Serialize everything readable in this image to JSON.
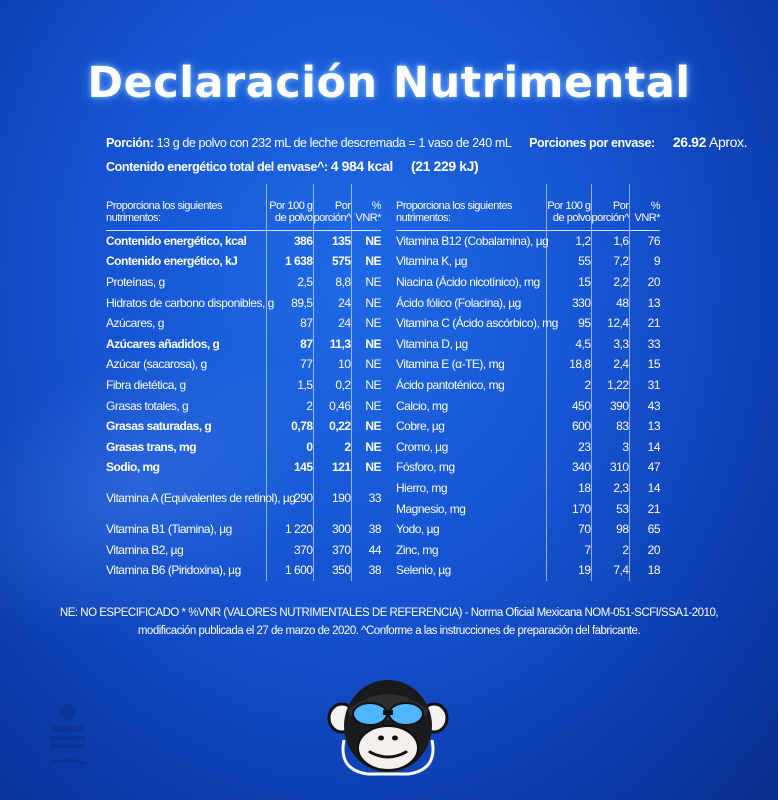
{
  "title": "Declaración Nutrimental",
  "serving": {
    "portion_label": "Porción:",
    "portion_text": "13 g de polvo con 232 mL de leche descremada = 1 vaso de 240 mL",
    "servings_label": "Porciones por envase:",
    "servings_value": "26.92",
    "servings_unit": "Aprox.",
    "energy_label": "Contenido energético total del envase^:",
    "energy_kcal": "4 984 kcal",
    "energy_kj": "(21 229 kJ)"
  },
  "left_table": {
    "headers": [
      "Proporciona los siguientes nutrimentos:",
      "Por 100 g de polvo",
      "Por porción^",
      "% VNR*"
    ],
    "rows": [
      {
        "name": "Contenido energético, kcal",
        "per100": "386",
        "portion": "135",
        "vnr": "NE"
      },
      {
        "name": "Contenido energético, kJ",
        "per100": "1 638",
        "portion": "575",
        "vnr": "NE"
      },
      {
        "name": "Proteínas, g",
        "per100": "2,5",
        "portion": "8,8",
        "vnr": "NE"
      },
      {
        "name": "Hidratos de carbono disponibles, g",
        "per100": "89,5",
        "portion": "24",
        "vnr": "NE"
      },
      {
        "name": "Azúcares, g",
        "per100": "87",
        "portion": "24",
        "vnr": "NE"
      },
      {
        "name": "Azúcares añadidos, g",
        "per100": "87",
        "portion": "11,3",
        "vnr": "NE"
      },
      {
        "name": "Azúcar (sacarosa), g",
        "per100": "77",
        "portion": "10",
        "vnr": "NE"
      },
      {
        "name": "Fibra dietética, g",
        "per100": "1,5",
        "portion": "0,2",
        "vnr": "NE"
      },
      {
        "name": "Grasas totales, g",
        "per100": "2",
        "portion": "0,46",
        "vnr": "NE"
      },
      {
        "name": "Grasas saturadas, g",
        "per100": "0,78",
        "portion": "0,22",
        "vnr": "NE"
      },
      {
        "name": "Grasas trans, mg",
        "per100": "0",
        "portion": "2",
        "vnr": "NE"
      },
      {
        "name": "Sodio, mg",
        "per100": "145",
        "portion": "121",
        "vnr": "NE"
      },
      {
        "name": "Vitamina A (Equivalentes de retinol), µg",
        "per100": "290",
        "portion": "190",
        "vnr": "33"
      },
      {
        "name": "Vitamina B1 (Tiamina), µg",
        "per100": "1 220",
        "portion": "300",
        "vnr": "38"
      },
      {
        "name": "Vitamina B2, µg",
        "per100": "370",
        "portion": "370",
        "vnr": "44"
      },
      {
        "name": "Vitamina B6 (Piridoxina), µg",
        "per100": "1 600",
        "portion": "350",
        "vnr": "38"
      }
    ]
  },
  "right_table": {
    "headers": [
      "Proporciona los siguientes nutrimentos:",
      "Por 100 g de polvo",
      "Por porción^",
      "% VNR*"
    ],
    "rows": [
      {
        "name": "Vitamina B12 (Cobalamina), µg",
        "per100": "1,2",
        "portion": "1,6",
        "vnr": "76"
      },
      {
        "name": "Vitamina K, µg",
        "per100": "55",
        "portion": "7,2",
        "vnr": "9"
      },
      {
        "name": "Niacina (Ácido nicotínico), mg",
        "per100": "15",
        "portion": "2,2",
        "vnr": "20"
      },
      {
        "name": "Ácido fólico (Folacina), µg",
        "per100": "330",
        "portion": "48",
        "vnr": "13"
      },
      {
        "name": "Vitamina C (Ácido ascórbico), mg",
        "per100": "95",
        "portion": "12,4",
        "vnr": "21"
      },
      {
        "name": "Vitamina D, µg",
        "per100": "4,5",
        "portion": "3,3",
        "vnr": "33"
      },
      {
        "name": "Vitamina E (α-TE), mg",
        "per100": "18,8",
        "portion": "2,4",
        "vnr": "15"
      },
      {
        "name": "Ácido pantoténico, mg",
        "per100": "2",
        "portion": "1,22",
        "vnr": "31"
      },
      {
        "name": "Calcio, mg",
        "per100": "450",
        "portion": "390",
        "vnr": "43"
      },
      {
        "name": "Cobre, µg",
        "per100": "600",
        "portion": "83",
        "vnr": "13"
      },
      {
        "name": "Cromo, µg",
        "per100": "23",
        "portion": "3",
        "vnr": "14"
      },
      {
        "name": "Fósforo, mg",
        "per100": "340",
        "portion": "310",
        "vnr": "47"
      },
      {
        "name": "Hierro, mg",
        "per100": "18",
        "portion": "2,3",
        "vnr": "14"
      },
      {
        "name": "Magnesio, mg",
        "per100": "170",
        "portion": "53",
        "vnr": "21"
      },
      {
        "name": "Yodo, µg",
        "per100": "70",
        "portion": "98",
        "vnr": "65"
      },
      {
        "name": "Zinc, mg",
        "per100": "7",
        "portion": "2",
        "vnr": "20"
      },
      {
        "name": "Selenio, µg",
        "per100": "19",
        "portion": "7,4",
        "vnr": "18"
      }
    ]
  },
  "footnote": {
    "line1": "NE: NO ESPECIFICADO  * %VNR (VALORES NUTRIMENTALES DE REFERENCIA) - Norma Oficial Mexicana NOM-051-SCFI/SSA1-2010,",
    "line2": "modificación publicada el 27 de marzo de 2020. ^Conforme a las instrucciones de preparación del fabricante."
  },
  "icons": {
    "mascot": "monkey-mascot-icon",
    "watermark": "brand-watermark-icon"
  },
  "colors": {
    "background": "#1552cf",
    "text": "#ffffff"
  }
}
